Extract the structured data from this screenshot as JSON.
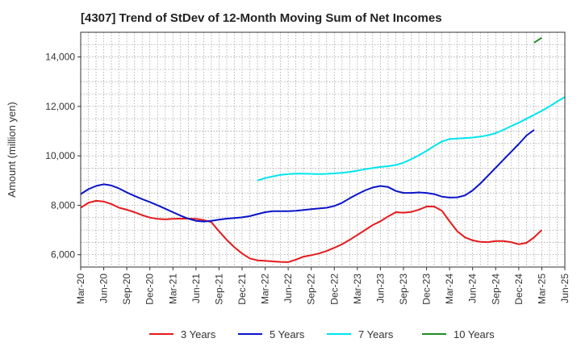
{
  "chart_data": {
    "type": "line",
    "title": "[4307]  Trend of StDev of 12-Month Moving Sum of Net Incomes",
    "ylabel": "Amount (million yen)",
    "xlabel": "",
    "ylim": [
      5500,
      15000
    ],
    "yticks": [
      6000,
      8000,
      10000,
      12000,
      14000
    ],
    "ytick_labels": [
      "6,000",
      "8,000",
      "10,000",
      "12,000",
      "14,000"
    ],
    "xtick_labels": [
      "Mar-20",
      "Jun-20",
      "Sep-20",
      "Dec-20",
      "Mar-21",
      "Jun-21",
      "Sep-21",
      "Dec-21",
      "Mar-22",
      "Jun-22",
      "Sep-22",
      "Dec-22",
      "Mar-23",
      "Jun-23",
      "Sep-23",
      "Dec-23",
      "Mar-24",
      "Jun-24",
      "Sep-24",
      "Dec-24",
      "Mar-25",
      "Jun-25"
    ],
    "x_start": "Mar-20",
    "grid": true,
    "legend_position": "bottom",
    "series": [
      {
        "name": "3 Years",
        "color": "#e41a1c",
        "start": "Mar-20",
        "values": [
          7900,
          8100,
          8180,
          8150,
          8050,
          7900,
          7820,
          7720,
          7600,
          7500,
          7450,
          7430,
          7450,
          7460,
          7460,
          7450,
          7400,
          7320,
          6950,
          6600,
          6300,
          6050,
          5850,
          5770,
          5750,
          5730,
          5710,
          5700,
          5800,
          5920,
          5980,
          6050,
          6150,
          6280,
          6420,
          6600,
          6800,
          7000,
          7200,
          7350,
          7550,
          7720,
          7700,
          7730,
          7820,
          7950,
          7950,
          7780,
          7350,
          6950,
          6700,
          6580,
          6520,
          6510,
          6550,
          6550,
          6510,
          6420,
          6480,
          6700,
          7000
        ]
      },
      {
        "name": "5 Years",
        "color": "#0a14c8",
        "start": "Mar-20",
        "values": [
          8450,
          8650,
          8780,
          8850,
          8800,
          8680,
          8520,
          8380,
          8250,
          8130,
          8000,
          7860,
          7720,
          7580,
          7460,
          7370,
          7340,
          7370,
          7420,
          7460,
          7480,
          7510,
          7560,
          7640,
          7720,
          7760,
          7760,
          7760,
          7780,
          7810,
          7840,
          7870,
          7900,
          7970,
          8100,
          8280,
          8450,
          8600,
          8720,
          8780,
          8740,
          8580,
          8500,
          8500,
          8520,
          8500,
          8450,
          8350,
          8310,
          8320,
          8400,
          8600,
          8880,
          9200,
          9520,
          9840,
          10160,
          10480,
          10820,
          11050
        ]
      },
      {
        "name": "7 Years",
        "color": "#00e5ee",
        "start": "Feb-22",
        "values": [
          9000,
          9100,
          9170,
          9230,
          9260,
          9280,
          9280,
          9270,
          9260,
          9270,
          9290,
          9310,
          9350,
          9400,
          9460,
          9510,
          9550,
          9580,
          9630,
          9720,
          9860,
          10020,
          10200,
          10400,
          10580,
          10680,
          10700,
          10720,
          10740,
          10780,
          10830,
          10920,
          11050,
          11200,
          11340,
          11500,
          11660,
          11820,
          12000,
          12200,
          12380
        ]
      },
      {
        "name": "10 Years",
        "color": "#228b22",
        "start": "Feb-25",
        "values": [
          14580,
          14780
        ]
      }
    ]
  }
}
